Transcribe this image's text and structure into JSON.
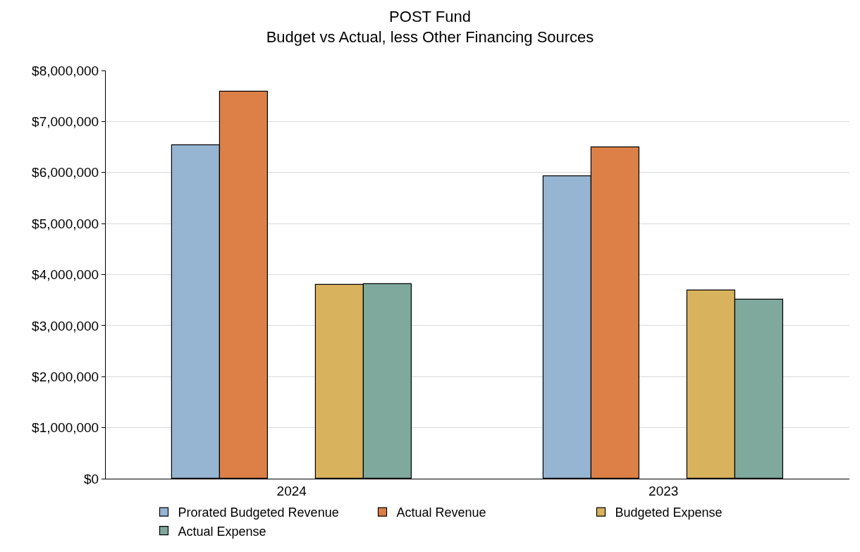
{
  "chart_data": {
    "type": "bar",
    "title": "POST Fund\nBudget vs Actual, less Other Financing Sources",
    "categories": [
      "2024",
      "2023"
    ],
    "series": [
      {
        "name": "Prorated Budgeted Revenue",
        "color": "#95b5d3",
        "values": [
          6530000,
          5930000
        ]
      },
      {
        "name": "Actual Revenue",
        "color": "#dd8047",
        "values": [
          7580000,
          6490000
        ]
      },
      {
        "name": "Budgeted Expense",
        "color": "#d8b25c",
        "values": [
          3800000,
          3690000
        ]
      },
      {
        "name": "Actual Expense",
        "color": "#7ea99c",
        "values": [
          3810000,
          3510000
        ]
      }
    ],
    "ylim": [
      0,
      8000000
    ],
    "yticks": [
      {
        "value": 0,
        "label": "$0"
      },
      {
        "value": 1000000,
        "label": "$1,000,000"
      },
      {
        "value": 2000000,
        "label": "$2,000,000"
      },
      {
        "value": 3000000,
        "label": "$3,000,000"
      },
      {
        "value": 4000000,
        "label": "$4,000,000"
      },
      {
        "value": 5000000,
        "label": "$5,000,000"
      },
      {
        "value": 6000000,
        "label": "$6,000,000"
      },
      {
        "value": 7000000,
        "label": "$7,000,000"
      },
      {
        "value": 8000000,
        "label": "$8,000,000"
      }
    ],
    "grid": "y",
    "legend": "bottom"
  }
}
